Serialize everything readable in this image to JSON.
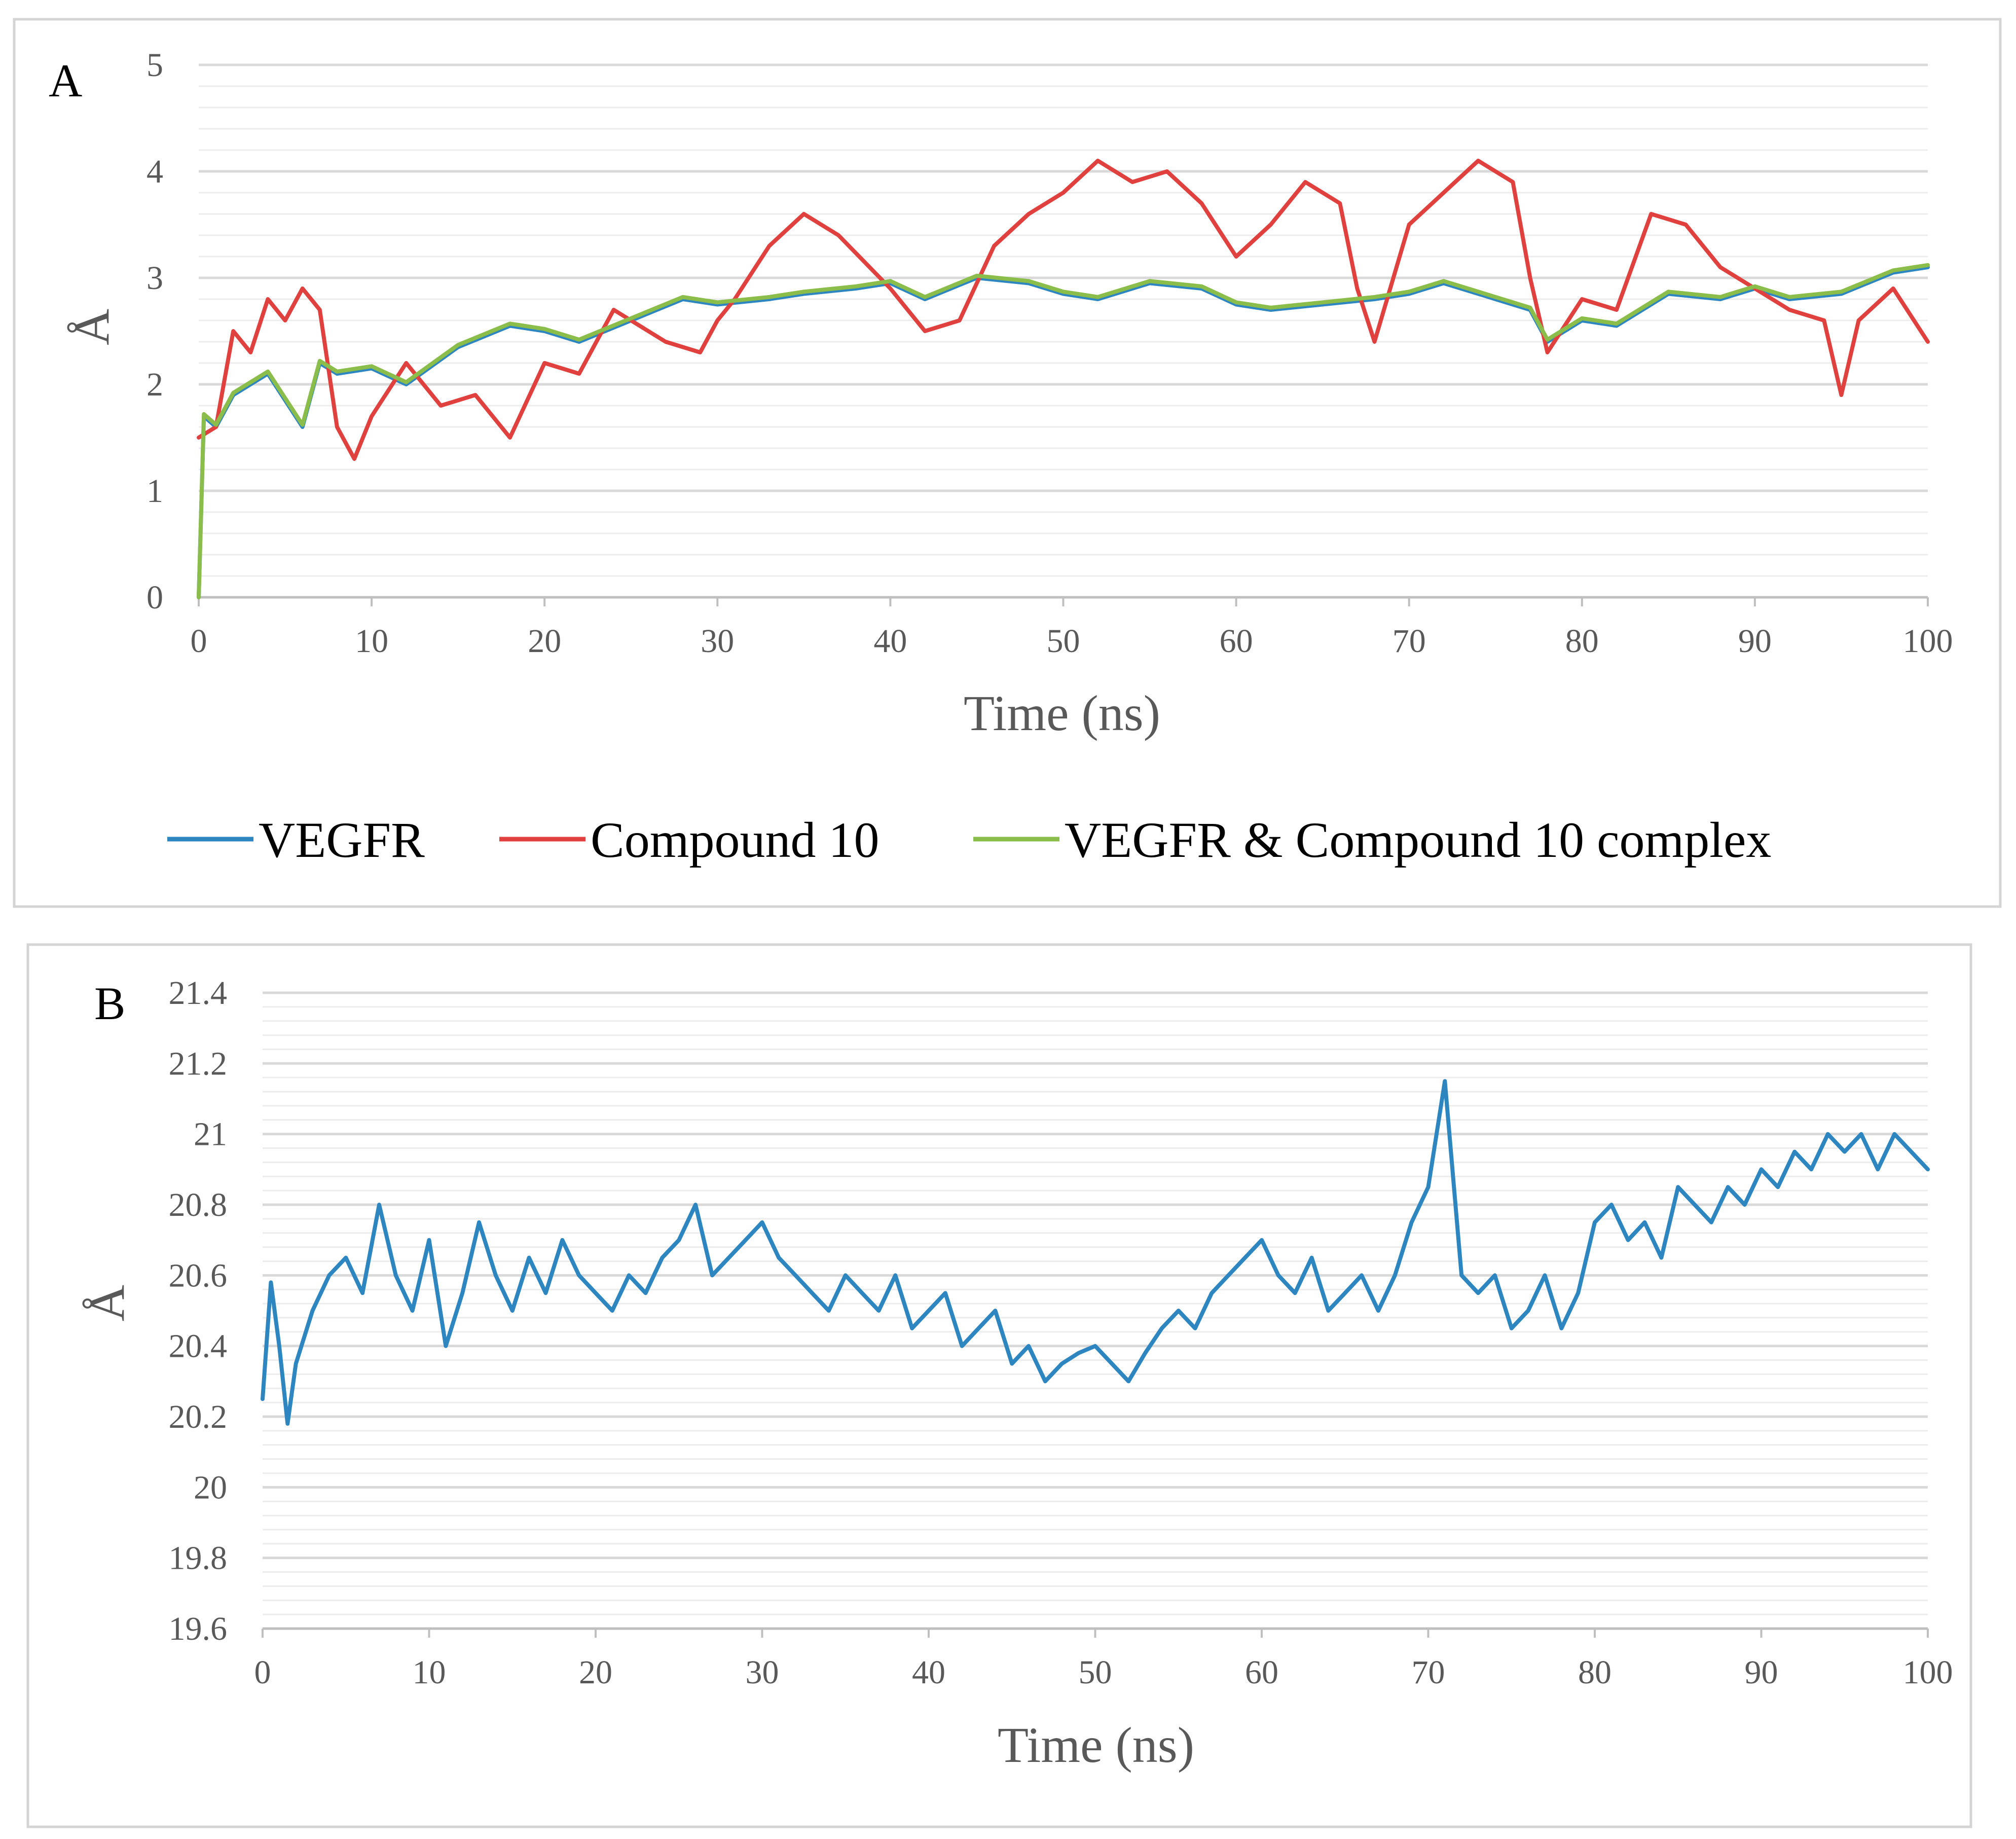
{
  "chart_data": [
    {
      "id": "A",
      "type": "line",
      "panel_label": "A",
      "title": "",
      "xlabel": "Time (ns)",
      "ylabel": "Å",
      "xlim": [
        0,
        100
      ],
      "ylim": [
        0,
        5
      ],
      "x_ticks": [
        0,
        10,
        20,
        30,
        40,
        50,
        60,
        70,
        80,
        90,
        100
      ],
      "x_tick_labels": [
        "0",
        "10",
        "20",
        "30",
        "40",
        "50",
        "60",
        "70",
        "80",
        "90",
        "100"
      ],
      "y_ticks": [
        0,
        1,
        2,
        3,
        4,
        5
      ],
      "y_tick_labels": [
        "0",
        "1",
        "2",
        "3",
        "4",
        "5"
      ],
      "minor_grid_step": 0.2,
      "grid": true,
      "legend_position": "bottom",
      "series": [
        {
          "name": "VEGFR",
          "color": "#2e86c1",
          "x": [
            0,
            0.3,
            1,
            2,
            3,
            4,
            5,
            6,
            7,
            8,
            10,
            12,
            15,
            18,
            20,
            22,
            25,
            28,
            30,
            33,
            35,
            38,
            40,
            42,
            45,
            48,
            50,
            52,
            55,
            58,
            60,
            62,
            65,
            68,
            70,
            72,
            75,
            77,
            78,
            80,
            82,
            85,
            88,
            90,
            92,
            95,
            98,
            100
          ],
          "values": [
            0,
            1.7,
            1.6,
            1.9,
            2.0,
            2.1,
            1.85,
            1.6,
            2.2,
            2.1,
            2.15,
            2.0,
            2.35,
            2.55,
            2.5,
            2.4,
            2.6,
            2.8,
            2.75,
            2.8,
            2.85,
            2.9,
            2.95,
            2.8,
            3.0,
            2.95,
            2.85,
            2.8,
            2.95,
            2.9,
            2.75,
            2.7,
            2.75,
            2.8,
            2.85,
            2.95,
            2.8,
            2.7,
            2.4,
            2.6,
            2.55,
            2.85,
            2.8,
            2.9,
            2.8,
            2.85,
            3.05,
            3.1
          ]
        },
        {
          "name": "Compound 10",
          "color": "#e0413e",
          "x": [
            0,
            1,
            2,
            3,
            4,
            5,
            6,
            7,
            8,
            9,
            10,
            12,
            14,
            16,
            18,
            20,
            22,
            24,
            25,
            27,
            29,
            30,
            31,
            33,
            35,
            37,
            40,
            42,
            44,
            46,
            48,
            50,
            52,
            54,
            56,
            58,
            60,
            62,
            64,
            66,
            67,
            68,
            70,
            72,
            74,
            76,
            77,
            78,
            80,
            82,
            84,
            86,
            88,
            90,
            92,
            94,
            95,
            96,
            98,
            100
          ],
          "values": [
            1.5,
            1.6,
            2.5,
            2.3,
            2.8,
            2.6,
            2.9,
            2.7,
            1.6,
            1.3,
            1.7,
            2.2,
            1.8,
            1.9,
            1.5,
            2.2,
            2.1,
            2.7,
            2.6,
            2.4,
            2.3,
            2.6,
            2.8,
            3.3,
            3.6,
            3.4,
            2.9,
            2.5,
            2.6,
            3.3,
            3.6,
            3.8,
            4.1,
            3.9,
            4.0,
            3.7,
            3.2,
            3.5,
            3.9,
            3.7,
            2.9,
            2.4,
            3.5,
            3.8,
            4.1,
            3.9,
            3.0,
            2.3,
            2.8,
            2.7,
            3.6,
            3.5,
            3.1,
            2.9,
            2.7,
            2.6,
            1.9,
            2.6,
            2.9,
            2.4
          ]
        },
        {
          "name": "VEGFR & Compound 10 complex",
          "color": "#8bbd4a",
          "x": [
            0,
            0.3,
            1,
            2,
            3,
            4,
            5,
            6,
            7,
            8,
            10,
            12,
            15,
            18,
            20,
            22,
            25,
            28,
            30,
            33,
            35,
            38,
            40,
            42,
            45,
            48,
            50,
            52,
            55,
            58,
            60,
            62,
            65,
            68,
            70,
            72,
            75,
            77,
            78,
            80,
            82,
            85,
            88,
            90,
            92,
            95,
            98,
            100
          ],
          "values": [
            0,
            1.72,
            1.62,
            1.92,
            2.02,
            2.12,
            1.87,
            1.62,
            2.22,
            2.12,
            2.17,
            2.02,
            2.37,
            2.57,
            2.52,
            2.42,
            2.62,
            2.82,
            2.77,
            2.82,
            2.87,
            2.92,
            2.97,
            2.82,
            3.02,
            2.97,
            2.87,
            2.82,
            2.97,
            2.92,
            2.77,
            2.72,
            2.77,
            2.82,
            2.87,
            2.97,
            2.82,
            2.72,
            2.42,
            2.62,
            2.57,
            2.87,
            2.82,
            2.92,
            2.82,
            2.87,
            3.07,
            3.12
          ]
        }
      ]
    },
    {
      "id": "B",
      "type": "line",
      "panel_label": "B",
      "title": "",
      "xlabel": "Time (ns)",
      "ylabel": "Å",
      "xlim": [
        0,
        100
      ],
      "ylim": [
        19.6,
        21.4
      ],
      "x_ticks": [
        0,
        10,
        20,
        30,
        40,
        50,
        60,
        70,
        80,
        90,
        100
      ],
      "x_tick_labels": [
        "0",
        "10",
        "20",
        "30",
        "40",
        "50",
        "60",
        "70",
        "80",
        "90",
        "100"
      ],
      "y_ticks": [
        19.6,
        19.8,
        20,
        20.2,
        20.4,
        20.6,
        20.8,
        21,
        21.2,
        21.4
      ],
      "y_tick_labels": [
        "19.6",
        "19.8",
        "20",
        "20.2",
        "20.4",
        "20.6",
        "20.8",
        "21",
        "21.2",
        "21.4"
      ],
      "minor_grid_step": 0.04,
      "grid": true,
      "legend_position": "none",
      "series": [
        {
          "name": "VEGFR",
          "color": "#2e86c1",
          "x": [
            0,
            0.5,
            1,
            1.5,
            2,
            3,
            4,
            5,
            6,
            7,
            8,
            9,
            10,
            11,
            12,
            13,
            14,
            15,
            16,
            17,
            18,
            19,
            20,
            21,
            22,
            23,
            24,
            25,
            26,
            27,
            28,
            29,
            30,
            31,
            32,
            33,
            34,
            35,
            36,
            37,
            38,
            39,
            40,
            41,
            42,
            43,
            44,
            45,
            46,
            47,
            48,
            49,
            50,
            51,
            52,
            53,
            54,
            55,
            56,
            57,
            58,
            59,
            60,
            61,
            62,
            63,
            64,
            65,
            66,
            67,
            68,
            69,
            70,
            71,
            72,
            73,
            74,
            75,
            76,
            77,
            78,
            79,
            80,
            81,
            82,
            83,
            84,
            85,
            86,
            87,
            88,
            89,
            90,
            91,
            92,
            93,
            94,
            95,
            96,
            97,
            98,
            99,
            100
          ],
          "values": [
            20.25,
            20.58,
            20.4,
            20.18,
            20.35,
            20.5,
            20.6,
            20.65,
            20.55,
            20.8,
            20.6,
            20.5,
            20.7,
            20.4,
            20.55,
            20.75,
            20.6,
            20.5,
            20.65,
            20.55,
            20.7,
            20.6,
            20.55,
            20.5,
            20.6,
            20.55,
            20.65,
            20.7,
            20.8,
            20.6,
            20.65,
            20.7,
            20.75,
            20.65,
            20.6,
            20.55,
            20.5,
            20.6,
            20.55,
            20.5,
            20.6,
            20.45,
            20.5,
            20.55,
            20.4,
            20.45,
            20.5,
            20.35,
            20.4,
            20.3,
            20.35,
            20.38,
            20.4,
            20.35,
            20.3,
            20.38,
            20.45,
            20.5,
            20.45,
            20.55,
            20.6,
            20.65,
            20.7,
            20.6,
            20.55,
            20.65,
            20.5,
            20.55,
            20.6,
            20.5,
            20.6,
            20.75,
            20.85,
            21.15,
            20.6,
            20.55,
            20.6,
            20.45,
            20.5,
            20.6,
            20.45,
            20.55,
            20.75,
            20.8,
            20.7,
            20.75,
            20.65,
            20.85,
            20.8,
            20.75,
            20.85,
            20.8,
            20.9,
            20.85,
            20.95,
            20.9,
            21.0,
            20.95,
            21.0,
            20.9,
            21.0,
            20.95,
            20.9
          ]
        }
      ]
    }
  ]
}
